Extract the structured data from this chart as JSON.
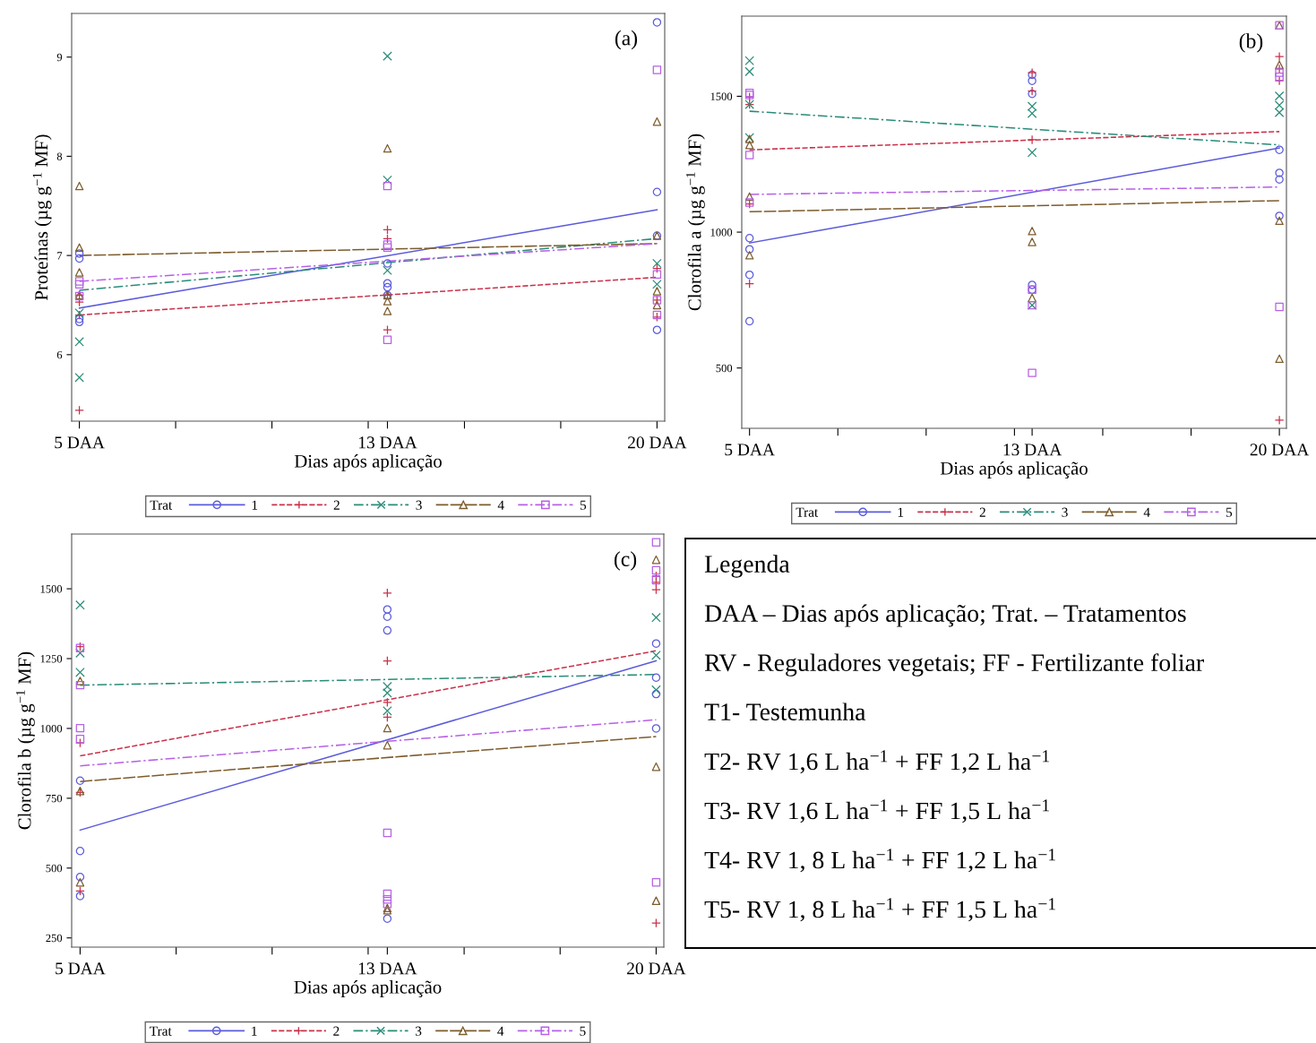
{
  "chart_data": [
    {
      "type": "scatter",
      "annotations": [
        "(a)"
      ],
      "xlabel": "Dias após aplicação",
      "ylabel": "Proteínas (µg g$^{−1}$ MF)",
      "legend_title": "Trat",
      "legend": "bottom",
      "xlim": [
        4.8,
        20.2
      ],
      "xticks": [
        {
          "value": 5,
          "label": "5 DAA"
        },
        {
          "value": 7.5,
          "label": null
        },
        {
          "value": 10,
          "label": null
        },
        {
          "value": 12.5,
          "label": null
        },
        {
          "value": 13,
          "label": "13 DAA"
        },
        {
          "value": 15,
          "label": null
        },
        {
          "value": 17.5,
          "label": null
        },
        {
          "value": 20,
          "label": "20 DAA"
        }
      ],
      "ylim": [
        5.33,
        9.44
      ],
      "yticks": [
        6,
        7,
        8,
        9
      ],
      "series": [
        {
          "name": "1",
          "type": "scatter",
          "marker": "circle",
          "color": "#5b5bdc",
          "x": [
            5,
            5,
            5,
            5,
            13,
            13,
            13,
            13,
            20,
            20,
            20,
            20
          ],
          "values": [
            7.02,
            6.97,
            6.36,
            6.33,
            6.92,
            6.72,
            6.68,
            6.6,
            9.35,
            7.64,
            7.2,
            6.25
          ]
        },
        {
          "name": "2",
          "type": "scatter",
          "marker": "plus",
          "color": "#c8324b",
          "x": [
            5,
            5,
            5,
            5,
            13,
            13,
            13,
            13,
            20,
            20,
            20
          ],
          "values": [
            6.6,
            6.53,
            6.4,
            5.44,
            7.26,
            7.17,
            6.6,
            6.25,
            6.87,
            6.55,
            6.38
          ]
        },
        {
          "name": "3",
          "type": "scatter",
          "marker": "cross",
          "color": "#2a8c78",
          "x": [
            5,
            5,
            5,
            13,
            13,
            13,
            20,
            20
          ],
          "values": [
            6.42,
            6.13,
            5.77,
            9.01,
            7.76,
            6.85,
            6.92,
            6.71
          ]
        },
        {
          "name": "4",
          "type": "scatter",
          "marker": "triangle",
          "color": "#7d5c2c",
          "x": [
            5,
            5,
            5,
            5,
            13,
            13,
            13,
            13,
            20,
            20,
            20,
            20
          ],
          "values": [
            7.7,
            7.08,
            6.83,
            6.6,
            8.08,
            6.6,
            6.54,
            6.44,
            8.35,
            7.2,
            6.64,
            6.5
          ]
        },
        {
          "name": "5",
          "type": "scatter",
          "marker": "square",
          "color": "#b760e6",
          "x": [
            5,
            5,
            5,
            13,
            13,
            13,
            13,
            20,
            20,
            20,
            20
          ],
          "values": [
            6.74,
            6.71,
            6.59,
            7.7,
            7.11,
            7.08,
            6.15,
            8.87,
            6.81,
            6.55,
            6.4
          ]
        },
        {
          "type": "line",
          "line_style": "solid",
          "color": "#5b5bdc",
          "x": [
            5,
            20
          ],
          "values": [
            6.47,
            7.46
          ]
        },
        {
          "type": "line",
          "line_style": "dashed",
          "color": "#c8324b",
          "x": [
            5,
            20
          ],
          "values": [
            6.4,
            6.78
          ]
        },
        {
          "type": "line",
          "line_style": "dashdot",
          "color": "#2a8c78",
          "x": [
            5,
            20
          ],
          "values": [
            6.65,
            7.17
          ]
        },
        {
          "type": "line",
          "line_style": "longdash",
          "color": "#7d5c2c",
          "x": [
            5,
            20
          ],
          "values": [
            7.0,
            7.12
          ]
        },
        {
          "type": "line",
          "line_style": "dashdot",
          "color": "#b760e6",
          "x": [
            5,
            20
          ],
          "values": [
            6.74,
            7.12
          ]
        }
      ]
    },
    {
      "type": "scatter",
      "annotations": [
        "(b)"
      ],
      "xlabel": "Dias após aplicação",
      "ylabel": "Clorofila a (µg g$^{−1}$ MF)",
      "legend_title": "Trat",
      "legend": "bottom",
      "xlim": [
        4.78,
        20.2
      ],
      "xticks": [
        {
          "value": 5,
          "label": "5 DAA"
        },
        {
          "value": 7.5,
          "label": null
        },
        {
          "value": 10,
          "label": null
        },
        {
          "value": 12.5,
          "label": null
        },
        {
          "value": 13,
          "label": "13 DAA"
        },
        {
          "value": 15,
          "label": null
        },
        {
          "value": 17.5,
          "label": null
        },
        {
          "value": 20,
          "label": "20 DAA"
        }
      ],
      "ylim": [
        278,
        1795
      ],
      "yticks": [
        500,
        1000,
        1500
      ],
      "series": [
        {
          "name": "1",
          "type": "scatter",
          "marker": "circle",
          "color": "#5b5bdc",
          "x": [
            5,
            5,
            5,
            5,
            13,
            13,
            13,
            13,
            13,
            20,
            20,
            20,
            20
          ],
          "values": [
            978,
            937,
            843,
            672,
            1579,
            1557,
            1509,
            806,
            788,
            1303,
            1218,
            1194,
            1060
          ]
        },
        {
          "name": "2",
          "type": "scatter",
          "marker": "plus",
          "color": "#c8324b",
          "x": [
            5,
            5,
            5,
            5,
            13,
            13,
            13,
            20,
            20,
            20,
            20
          ],
          "values": [
            1497,
            1470,
            1104,
            810,
            1587,
            1519,
            1340,
            1646,
            1601,
            1557,
            308
          ]
        },
        {
          "name": "3",
          "type": "scatter",
          "marker": "cross",
          "color": "#2a8c78",
          "x": [
            5,
            5,
            5,
            5,
            13,
            13,
            13,
            13,
            20,
            20,
            20
          ],
          "values": [
            1631,
            1591,
            1470,
            1348,
            1463,
            1437,
            1293,
            731,
            1501,
            1467,
            1440
          ]
        },
        {
          "name": "4",
          "type": "scatter",
          "marker": "triangle",
          "color": "#7d5c2c",
          "x": [
            5,
            5,
            5,
            5,
            13,
            13,
            13,
            20,
            20,
            20,
            20
          ],
          "values": [
            1343,
            1321,
            1131,
            915,
            1004,
            964,
            758,
            1761,
            1616,
            1042,
            534
          ]
        },
        {
          "name": "5",
          "type": "scatter",
          "marker": "square",
          "color": "#b760e6",
          "x": [
            5,
            5,
            5,
            5,
            13,
            13,
            13,
            20,
            20,
            20,
            20
          ],
          "values": [
            1512,
            1505,
            1284,
            1109,
            788,
            731,
            482,
            1761,
            1587,
            1572,
            725
          ]
        },
        {
          "type": "line",
          "line_style": "solid",
          "color": "#5b5bdc",
          "x": [
            5,
            20
          ],
          "values": [
            960,
            1310
          ]
        },
        {
          "type": "line",
          "line_style": "dashed",
          "color": "#c8324b",
          "x": [
            5,
            20
          ],
          "values": [
            1303,
            1370
          ]
        },
        {
          "type": "line",
          "line_style": "dashdot",
          "color": "#2a8c78",
          "x": [
            5,
            20
          ],
          "values": [
            1445,
            1321
          ]
        },
        {
          "type": "line",
          "line_style": "longdash",
          "color": "#7d5c2c",
          "x": [
            5,
            20
          ],
          "values": [
            1075,
            1116
          ]
        },
        {
          "type": "line",
          "line_style": "dashdot",
          "color": "#b760e6",
          "x": [
            5,
            20
          ],
          "values": [
            1139,
            1166
          ]
        }
      ]
    },
    {
      "type": "scatter",
      "annotations": [
        "(c)"
      ],
      "xlabel": "Dias após aplicação",
      "ylabel": "Clorofila b (µg g$^{−1}$ MF)",
      "legend_title": "Trat",
      "legend": "bottom",
      "xlim": [
        4.78,
        20.2
      ],
      "xticks": [
        {
          "value": 5,
          "label": "5 DAA"
        },
        {
          "value": 7.5,
          "label": null
        },
        {
          "value": 10,
          "label": null
        },
        {
          "value": 12.5,
          "label": null
        },
        {
          "value": 13,
          "label": "13 DAA"
        },
        {
          "value": 15,
          "label": null
        },
        {
          "value": 17.5,
          "label": null
        },
        {
          "value": 20,
          "label": "20 DAA"
        }
      ],
      "ylim": [
        217,
        1696
      ],
      "yticks": [
        250,
        500,
        750,
        1000,
        1250,
        1500
      ],
      "series": [
        {
          "name": "1",
          "type": "scatter",
          "marker": "circle",
          "color": "#5b5bdc",
          "x": [
            5,
            5,
            5,
            5,
            13,
            13,
            13,
            13,
            20,
            20,
            20,
            20
          ],
          "values": [
            813,
            561,
            468,
            400,
            1426,
            1400,
            1351,
            319,
            1304,
            1182,
            1123,
            1000
          ]
        },
        {
          "name": "2",
          "type": "scatter",
          "marker": "plus",
          "color": "#c8324b",
          "x": [
            5,
            5,
            5,
            5,
            13,
            13,
            13,
            13,
            20,
            20,
            20,
            20
          ],
          "values": [
            1293,
            948,
            771,
            418,
            1485,
            1242,
            1093,
            1040,
            1546,
            1523,
            1497,
            303
          ]
        },
        {
          "name": "3",
          "type": "scatter",
          "marker": "cross",
          "color": "#2a8c78",
          "x": [
            5,
            5,
            5,
            13,
            13,
            13,
            20,
            20,
            20
          ],
          "values": [
            1442,
            1270,
            1201,
            1150,
            1127,
            1063,
            1397,
            1262,
            1138
          ]
        },
        {
          "name": "4",
          "type": "scatter",
          "marker": "triangle",
          "color": "#7d5c2c",
          "x": [
            5,
            5,
            5,
            13,
            13,
            13,
            13,
            20,
            20,
            20
          ],
          "values": [
            1170,
            776,
            449,
            1001,
            940,
            357,
            349,
            1604,
            863,
            383
          ]
        },
        {
          "name": "5",
          "type": "scatter",
          "marker": "square",
          "color": "#b760e6",
          "x": [
            5,
            5,
            5,
            5,
            13,
            13,
            13,
            13,
            20,
            20,
            20,
            20
          ],
          "values": [
            1288,
            1155,
            1001,
            962,
            626,
            408,
            388,
            372,
            1666,
            1566,
            1531,
            449
          ]
        },
        {
          "type": "line",
          "line_style": "solid",
          "color": "#5b5bdc",
          "x": [
            5,
            20
          ],
          "values": [
            636,
            1242
          ]
        },
        {
          "type": "line",
          "line_style": "dashed",
          "color": "#c8324b",
          "x": [
            5,
            20
          ],
          "values": [
            902,
            1278
          ]
        },
        {
          "type": "line",
          "line_style": "dashdot",
          "color": "#2a8c78",
          "x": [
            5,
            20
          ],
          "values": [
            1155,
            1193
          ]
        },
        {
          "type": "line",
          "line_style": "longdash",
          "color": "#7d5c2c",
          "x": [
            5,
            20
          ],
          "values": [
            810,
            971
          ]
        },
        {
          "type": "line",
          "line_style": "dashdot",
          "color": "#b760e6",
          "x": [
            5,
            20
          ],
          "values": [
            866,
            1031
          ]
        }
      ]
    },
    {
      "type": "other",
      "title": "Legenda",
      "annotations": [
        "DAA – Dias após aplicação; Trat. – Tratamentos",
        "RV - Reguladores vegetais; FF - Fertilizante foliar",
        "T1- Testemunha",
        "T2- RV 1,6 L ha$^{−1}$ + FF 1,2 L ha$^{−1}$",
        "T3- RV 1,6 L ha$^{−1}$ + FF 1,5 L ha$^{−1}$",
        "T4- RV 1, 8 L ha$^{−1}$ + FF 1,2 L ha$^{−1}$",
        "T5- RV 1, 8 L ha$^{−1}$ + FF 1,5 L ha$^{−1}$"
      ]
    }
  ]
}
